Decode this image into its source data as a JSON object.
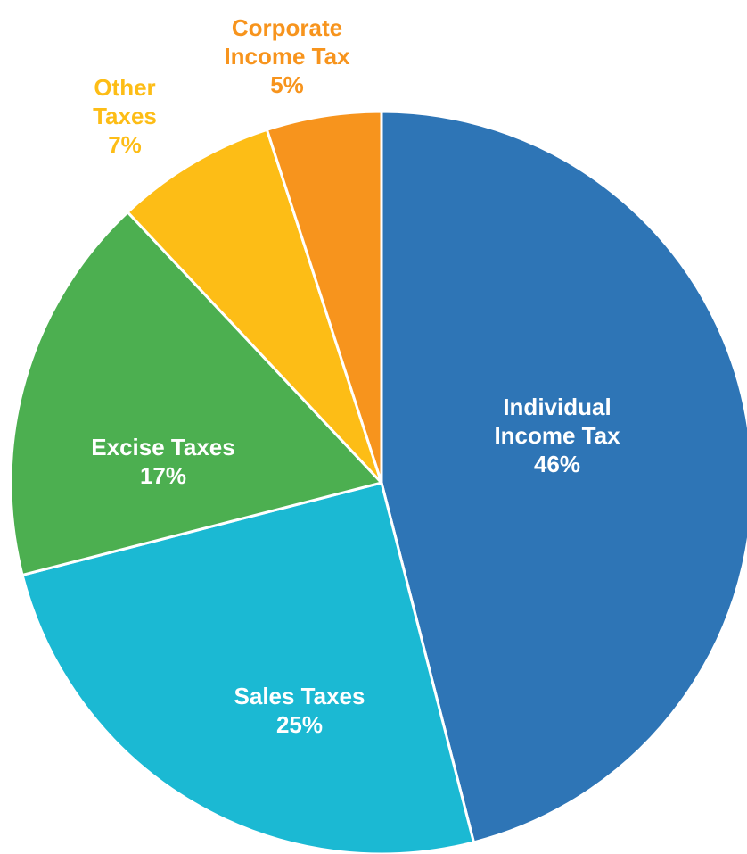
{
  "chart_data": {
    "type": "pie",
    "categories": [
      "Individual Income Tax",
      "Sales Taxes",
      "Excise Taxes",
      "Other Taxes",
      "Corporate Income Tax"
    ],
    "values": [
      46,
      25,
      17,
      7,
      5
    ],
    "value_labels": [
      "46%",
      "25%",
      "17%",
      "7%",
      "5%"
    ],
    "colors": [
      "#2e75b6",
      "#1bb9d3",
      "#4caf50",
      "#fdbd16",
      "#f7941d"
    ]
  }
}
